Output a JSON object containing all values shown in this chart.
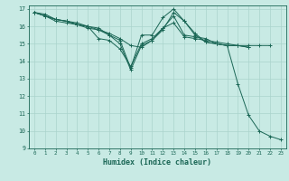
{
  "xlabel": "Humidex (Indice chaleur)",
  "xlim": [
    -0.5,
    23.5
  ],
  "ylim": [
    9,
    17.2
  ],
  "yticks": [
    9,
    10,
    11,
    12,
    13,
    14,
    15,
    16,
    17
  ],
  "xticks": [
    0,
    1,
    2,
    3,
    4,
    5,
    6,
    7,
    8,
    9,
    10,
    11,
    12,
    13,
    14,
    15,
    16,
    17,
    18,
    19,
    20,
    21,
    22,
    23
  ],
  "bg_color": "#c8eae4",
  "grid_color": "#aad4cc",
  "line_color": "#1a6655",
  "lines": [
    {
      "x": [
        0,
        1,
        2,
        3,
        4,
        5,
        6,
        7,
        8,
        9,
        10,
        11,
        12,
        13,
        14,
        15,
        16,
        17,
        18,
        19,
        20,
        21,
        22,
        23
      ],
      "y": [
        16.8,
        16.7,
        16.4,
        16.3,
        16.1,
        16.0,
        15.9,
        15.5,
        15.2,
        13.6,
        15.5,
        15.5,
        16.5,
        17.0,
        16.3,
        15.6,
        15.1,
        15.0,
        14.9,
        12.7,
        10.9,
        10.0,
        9.7,
        9.5
      ]
    },
    {
      "x": [
        0,
        1,
        2,
        3,
        4,
        5,
        6,
        7,
        8,
        9,
        10,
        11,
        12,
        13,
        14,
        15,
        16,
        17,
        18,
        19,
        20,
        21,
        22
      ],
      "y": [
        16.8,
        16.6,
        16.4,
        16.3,
        16.2,
        16.0,
        15.8,
        15.6,
        15.3,
        14.9,
        14.8,
        15.2,
        15.9,
        16.6,
        15.5,
        15.4,
        15.3,
        15.0,
        14.9,
        14.9,
        14.9,
        14.9,
        14.9
      ]
    },
    {
      "x": [
        0,
        1,
        2,
        3,
        4,
        5,
        6,
        7,
        8,
        9,
        10,
        11,
        12,
        13,
        14,
        15,
        16,
        17,
        18,
        19,
        20
      ],
      "y": [
        16.8,
        16.6,
        16.3,
        16.2,
        16.1,
        16.0,
        15.3,
        15.2,
        14.7,
        13.7,
        15.0,
        15.3,
        15.9,
        16.2,
        15.4,
        15.3,
        15.2,
        15.1,
        15.0,
        14.9,
        14.8
      ]
    },
    {
      "x": [
        0,
        1,
        2,
        3,
        4,
        5,
        6,
        7,
        8,
        9,
        10,
        11,
        12,
        13,
        14,
        15,
        16,
        17,
        18,
        19,
        20
      ],
      "y": [
        16.8,
        16.6,
        16.4,
        16.3,
        16.1,
        15.9,
        15.8,
        15.5,
        15.0,
        13.5,
        14.9,
        15.2,
        15.8,
        16.8,
        16.3,
        15.5,
        15.1,
        15.0,
        14.9,
        14.9,
        14.8
      ]
    }
  ]
}
